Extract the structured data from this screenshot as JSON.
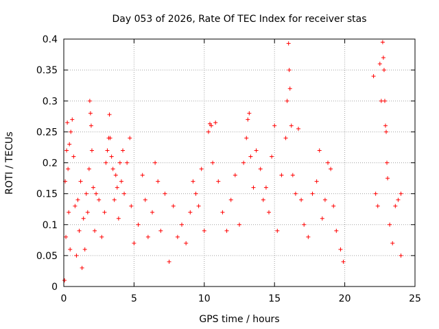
{
  "chart_data": {
    "type": "scatter",
    "title": "Day 053 of 2026, Rate Of TEC Index for receiver stas",
    "xlabel": "GPS time / hours",
    "ylabel": "ROTI / TECUs",
    "xlim": [
      0,
      25
    ],
    "ylim": [
      0,
      0.4
    ],
    "x_ticks": [
      0,
      5,
      10,
      15,
      20,
      25
    ],
    "y_ticks": [
      0,
      0.05,
      0.1,
      0.15,
      0.2,
      0.25,
      0.3,
      0.35,
      0.4
    ],
    "x_tick_labels": [
      "0",
      "5",
      "10",
      "15",
      "20",
      "25"
    ],
    "y_tick_labels": [
      "0",
      "0.05",
      "0.1",
      "0.15",
      "0.2",
      "0.25",
      "0.3",
      "0.35",
      "0.4"
    ],
    "grid": true,
    "marker": "plus",
    "marker_color": "#ff0000",
    "data_gap_hours": [
      20.0,
      22.0
    ],
    "series": [
      {
        "points": [
          [
            0.05,
            0.01
          ],
          [
            0.1,
            0.17
          ],
          [
            0.15,
            0.08
          ],
          [
            0.2,
            0.22
          ],
          [
            0.25,
            0.265
          ],
          [
            0.3,
            0.19
          ],
          [
            0.35,
            0.12
          ],
          [
            0.4,
            0.23
          ],
          [
            0.45,
            0.06
          ],
          [
            0.5,
            0.25
          ],
          [
            0.6,
            0.27
          ],
          [
            0.7,
            0.21
          ],
          [
            0.8,
            0.13
          ],
          [
            0.9,
            0.05
          ],
          [
            1.0,
            0.14
          ],
          [
            1.1,
            0.09
          ],
          [
            1.2,
            0.17
          ],
          [
            1.3,
            0.03
          ],
          [
            1.4,
            0.11
          ],
          [
            1.5,
            0.06
          ],
          [
            1.6,
            0.15
          ],
          [
            1.7,
            0.12
          ],
          [
            1.8,
            0.19
          ],
          [
            1.85,
            0.3
          ],
          [
            1.9,
            0.28
          ],
          [
            1.95,
            0.26
          ],
          [
            2.0,
            0.22
          ],
          [
            2.1,
            0.16
          ],
          [
            2.2,
            0.09
          ],
          [
            2.3,
            0.15
          ],
          [
            2.5,
            0.14
          ],
          [
            2.7,
            0.08
          ],
          [
            2.9,
            0.12
          ],
          [
            3.0,
            0.2
          ],
          [
            3.1,
            0.22
          ],
          [
            3.2,
            0.24
          ],
          [
            3.25,
            0.278
          ],
          [
            3.3,
            0.24
          ],
          [
            3.4,
            0.21
          ],
          [
            3.5,
            0.19
          ],
          [
            3.6,
            0.14
          ],
          [
            3.7,
            0.18
          ],
          [
            3.8,
            0.16
          ],
          [
            3.9,
            0.11
          ],
          [
            4.0,
            0.2
          ],
          [
            4.1,
            0.17
          ],
          [
            4.2,
            0.22
          ],
          [
            4.3,
            0.15
          ],
          [
            4.5,
            0.2
          ],
          [
            4.7,
            0.24
          ],
          [
            4.8,
            0.13
          ],
          [
            5.0,
            0.07
          ],
          [
            5.3,
            0.1
          ],
          [
            5.6,
            0.18
          ],
          [
            5.8,
            0.14
          ],
          [
            6.0,
            0.08
          ],
          [
            6.3,
            0.12
          ],
          [
            6.5,
            0.2
          ],
          [
            6.7,
            0.17
          ],
          [
            6.9,
            0.09
          ],
          [
            7.2,
            0.15
          ],
          [
            7.5,
            0.04
          ],
          [
            7.8,
            0.13
          ],
          [
            8.1,
            0.08
          ],
          [
            8.4,
            0.1
          ],
          [
            8.7,
            0.07
          ],
          [
            9.0,
            0.12
          ],
          [
            9.2,
            0.17
          ],
          [
            9.4,
            0.15
          ],
          [
            9.6,
            0.13
          ],
          [
            9.8,
            0.19
          ],
          [
            10.0,
            0.09
          ],
          [
            10.3,
            0.25
          ],
          [
            10.4,
            0.263
          ],
          [
            10.5,
            0.26
          ],
          [
            10.6,
            0.2
          ],
          [
            10.8,
            0.265
          ],
          [
            11.0,
            0.17
          ],
          [
            11.3,
            0.12
          ],
          [
            11.6,
            0.09
          ],
          [
            11.9,
            0.14
          ],
          [
            12.2,
            0.18
          ],
          [
            12.5,
            0.1
          ],
          [
            12.8,
            0.2
          ],
          [
            13.0,
            0.24
          ],
          [
            13.1,
            0.27
          ],
          [
            13.2,
            0.28
          ],
          [
            13.3,
            0.21
          ],
          [
            13.5,
            0.16
          ],
          [
            13.7,
            0.22
          ],
          [
            14.0,
            0.19
          ],
          [
            14.2,
            0.14
          ],
          [
            14.4,
            0.16
          ],
          [
            14.6,
            0.12
          ],
          [
            14.8,
            0.21
          ],
          [
            15.0,
            0.26
          ],
          [
            15.2,
            0.09
          ],
          [
            15.5,
            0.18
          ],
          [
            15.8,
            0.24
          ],
          [
            15.9,
            0.3
          ],
          [
            16.0,
            0.393
          ],
          [
            16.05,
            0.35
          ],
          [
            16.1,
            0.32
          ],
          [
            16.2,
            0.26
          ],
          [
            16.3,
            0.18
          ],
          [
            16.5,
            0.15
          ],
          [
            16.7,
            0.255
          ],
          [
            16.9,
            0.14
          ],
          [
            17.1,
            0.1
          ],
          [
            17.4,
            0.08
          ],
          [
            17.7,
            0.15
          ],
          [
            18.0,
            0.17
          ],
          [
            18.2,
            0.22
          ],
          [
            18.4,
            0.11
          ],
          [
            18.6,
            0.14
          ],
          [
            18.8,
            0.2
          ],
          [
            19.0,
            0.19
          ],
          [
            19.2,
            0.13
          ],
          [
            19.4,
            0.09
          ],
          [
            19.7,
            0.06
          ],
          [
            19.9,
            0.04
          ],
          [
            22.05,
            0.34
          ],
          [
            22.2,
            0.15
          ],
          [
            22.35,
            0.13
          ],
          [
            22.5,
            0.36
          ],
          [
            22.6,
            0.3
          ],
          [
            22.7,
            0.395
          ],
          [
            22.75,
            0.37
          ],
          [
            22.8,
            0.35
          ],
          [
            22.85,
            0.3
          ],
          [
            22.9,
            0.26
          ],
          [
            22.95,
            0.25
          ],
          [
            23.0,
            0.2
          ],
          [
            23.05,
            0.175
          ],
          [
            23.2,
            0.1
          ],
          [
            23.4,
            0.07
          ],
          [
            23.6,
            0.13
          ],
          [
            23.8,
            0.14
          ],
          [
            24.0,
            0.15
          ],
          [
            24.0,
            0.05
          ]
        ]
      }
    ]
  }
}
